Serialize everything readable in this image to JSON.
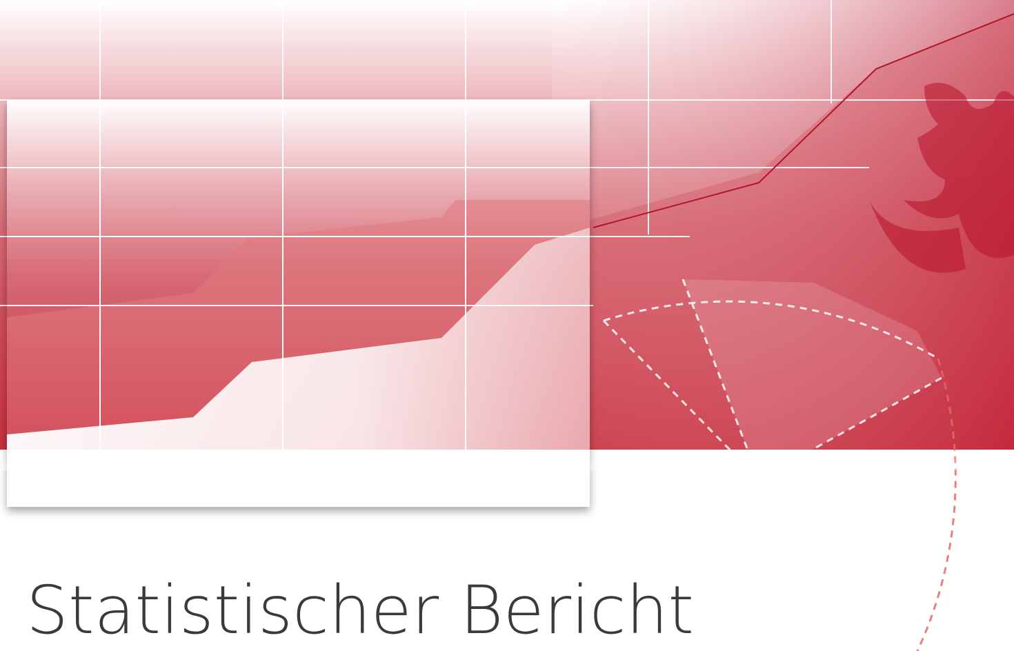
{
  "title": "Statistischer Bericht"
}
